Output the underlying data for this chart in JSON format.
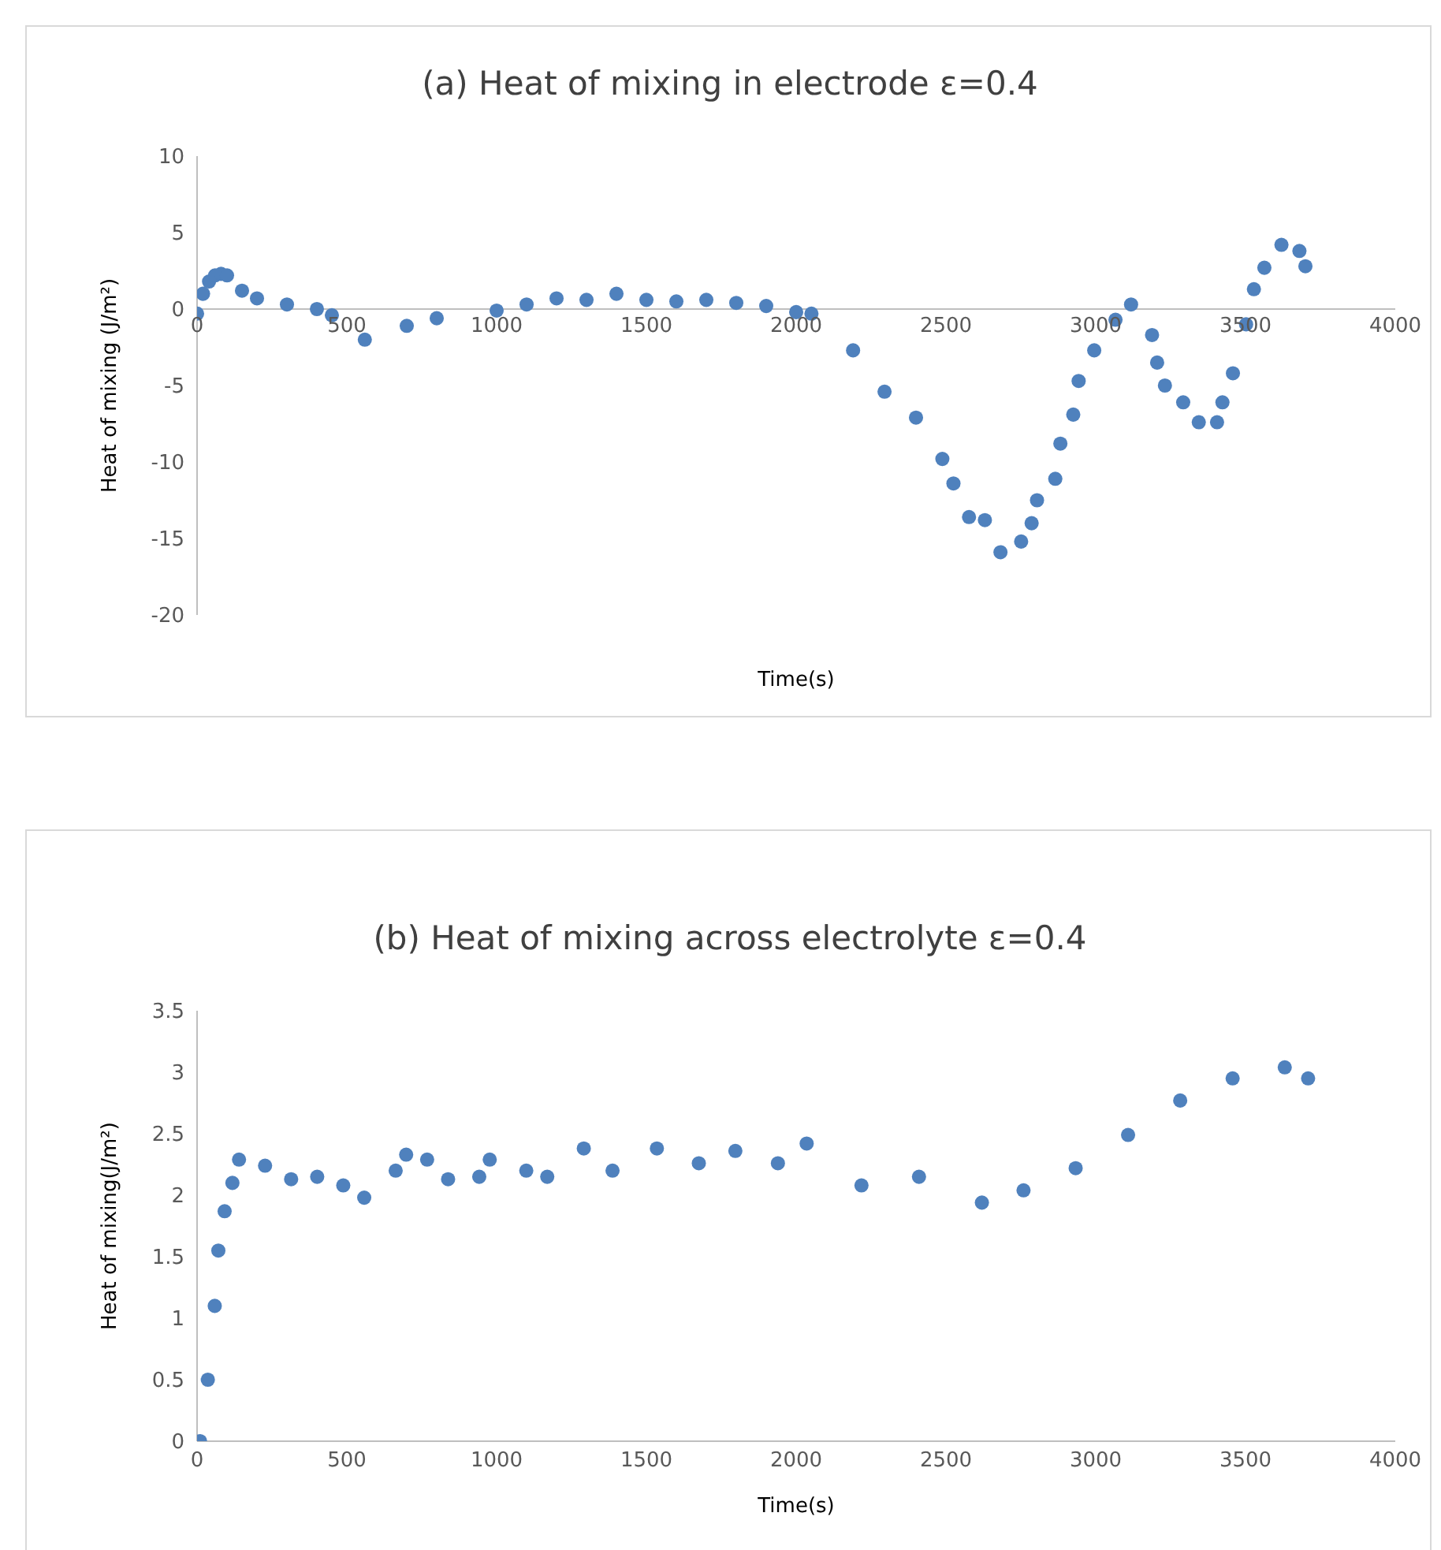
{
  "chart_data": [
    {
      "type": "scatter",
      "title": "(a) Heat of mixing in electrode ε=0.4",
      "xlabel": "Time(s)",
      "ylabel": "Heat of mixing (J/m²)",
      "marker": "circle",
      "grid": false,
      "legend": false,
      "xlim": [
        0,
        4000
      ],
      "xticks": [
        0,
        500,
        1000,
        1500,
        2000,
        2500,
        3000,
        3500,
        4000
      ],
      "ylim": [
        -20,
        10
      ],
      "yticks": [
        -20,
        -15,
        -10,
        -5,
        0,
        5,
        10
      ],
      "series": [
        {
          "color": "#4f81bd",
          "x": [
            0,
            20,
            40,
            60,
            80,
            100,
            150,
            200,
            300,
            400,
            450,
            560,
            700,
            800,
            1000,
            1100,
            1200,
            1300,
            1400,
            1500,
            1600,
            1700,
            1800,
            1900,
            2000,
            2051,
            2190,
            2295,
            2400,
            2488,
            2525,
            2577,
            2630,
            2682,
            2751,
            2786,
            2804,
            2865,
            2882,
            2925,
            2943,
            2995,
            3066,
            3118,
            3188,
            3205,
            3231,
            3292,
            3344,
            3405,
            3423,
            3458,
            3502,
            3528,
            3563,
            3620,
            3680,
            3700
          ],
          "values": [
            -0.3,
            1,
            1.8,
            2.2,
            2.3,
            2.2,
            1.2,
            0.7,
            0.3,
            0,
            -0.4,
            -2,
            -1.1,
            -0.6,
            -0.1,
            0.3,
            0.7,
            0.6,
            1,
            0.6,
            0.5,
            0.6,
            0.4,
            0.2,
            -0.2,
            -0.3,
            -2.7,
            -5.4,
            -7.1,
            -9.8,
            -11.4,
            -13.6,
            -13.8,
            -15.9,
            -15.2,
            -14,
            -12.5,
            -11.1,
            -8.8,
            -6.9,
            -4.7,
            -2.7,
            -0.7,
            0.3,
            -1.7,
            -3.5,
            -5,
            -6.1,
            -7.4,
            -7.4,
            -6.1,
            -4.2,
            -1,
            1.3,
            2.7,
            4.2,
            3.8,
            2.8
          ]
        }
      ]
    },
    {
      "type": "scatter",
      "title": "(b) Heat of mixing across electrolyte ε=0.4",
      "xlabel": "Time(s)",
      "ylabel": "Heat of mixing(J/m²)",
      "marker": "circle",
      "grid": false,
      "legend": false,
      "xlim": [
        0,
        4000
      ],
      "xticks": [
        0,
        500,
        1000,
        1500,
        2000,
        2500,
        3000,
        3500,
        4000
      ],
      "ylim": [
        0,
        3.5
      ],
      "yticks": [
        0,
        0.5,
        1,
        1.5,
        2,
        2.5,
        3,
        3.5
      ],
      "series": [
        {
          "color": "#4f81bd",
          "x": [
            10,
            36,
            59,
            71,
            92,
            118,
            140,
            227,
            314,
            401,
            488,
            558,
            663,
            698,
            768,
            838,
            942,
            977,
            1099,
            1169,
            1291,
            1387,
            1535,
            1675,
            1797,
            1939,
            2035,
            2218,
            2410,
            2620,
            2759,
            2933,
            3108,
            3282,
            3457,
            3631,
            3709
          ],
          "values": [
            0,
            0.5,
            1.1,
            1.55,
            1.87,
            2.1,
            2.29,
            2.24,
            2.13,
            2.15,
            2.08,
            1.98,
            2.2,
            2.33,
            2.29,
            2.13,
            2.15,
            2.29,
            2.2,
            2.15,
            2.38,
            2.2,
            2.38,
            2.26,
            2.36,
            2.26,
            2.42,
            2.08,
            2.15,
            1.94,
            2.04,
            2.22,
            2.49,
            2.77,
            2.95,
            3.04,
            2.95
          ]
        }
      ]
    }
  ]
}
